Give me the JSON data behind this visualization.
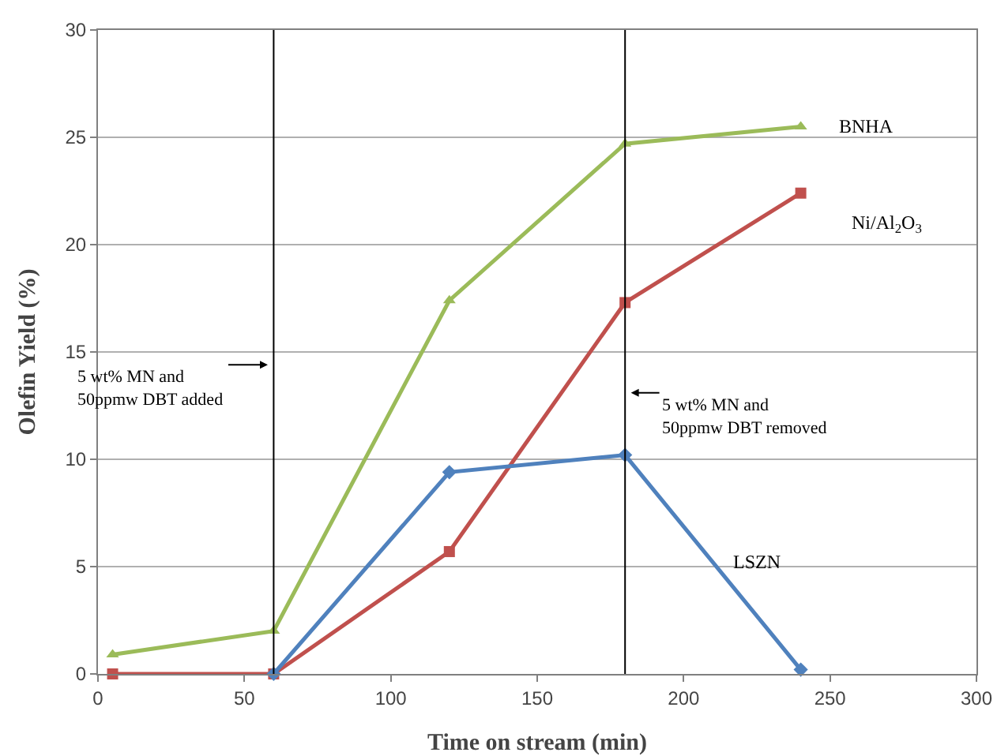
{
  "chart_data": {
    "type": "line",
    "xlabel": "Time on stream (min)",
    "ylabel": "Olefin Yield (%)",
    "xlim": [
      0,
      300
    ],
    "xticks": [
      0,
      50,
      100,
      150,
      200,
      250,
      300
    ],
    "ylim": [
      0,
      30
    ],
    "yticks": [
      0,
      5,
      10,
      15,
      20,
      25,
      30
    ],
    "grid": "y",
    "legend": false,
    "line_style": "solid",
    "series": [
      {
        "name": "BNHA",
        "color": "#9bbb59",
        "marker": "triangle",
        "x": [
          5,
          60,
          120,
          180,
          240
        ],
        "values": [
          0.9,
          2.0,
          17.4,
          24.7,
          25.5
        ]
      },
      {
        "name": "Ni/Al$_{2}$O$_{3}$",
        "color": "#c0504d",
        "marker": "square",
        "x": [
          5,
          60,
          120,
          180,
          240
        ],
        "values": [
          0,
          0,
          5.7,
          17.3,
          22.4
        ]
      },
      {
        "name": "LSZN",
        "color": "#4f81bd",
        "marker": "diamond",
        "x": [
          60,
          120,
          180,
          240
        ],
        "values": [
          0,
          9.4,
          10.2,
          0.2
        ]
      }
    ],
    "ref_lines": [
      {
        "axis": "x",
        "value": 60,
        "color": "#000000"
      },
      {
        "axis": "x",
        "value": 180,
        "color": "#000000"
      }
    ],
    "annotations": [
      {
        "text": "5 wt% MN and\n50ppmw DBT added",
        "x": 58,
        "y": 14.4
      },
      {
        "text": "5 wt% MN and\n50ppmw DBT removed",
        "x": 182,
        "y": 13.1
      }
    ]
  }
}
